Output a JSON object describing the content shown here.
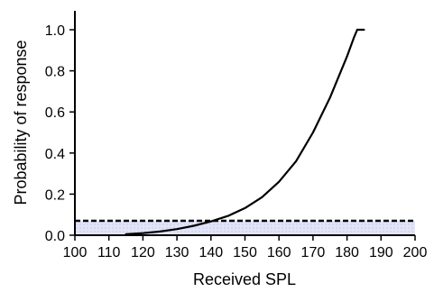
{
  "chart_data": {
    "type": "line",
    "title": "",
    "xlabel": "Received SPL",
    "ylabel": "Probability of response",
    "xlim": [
      100,
      200
    ],
    "ylim": [
      0,
      1.1
    ],
    "x_ticks": [
      "100",
      "110",
      "120",
      "130",
      "140",
      "150",
      "160",
      "170",
      "180",
      "190",
      "200"
    ],
    "y_ticks": [
      "0.0",
      "0.2",
      "0.4",
      "0.6",
      "0.8",
      "1.0"
    ],
    "grid": false,
    "legend": "none",
    "series": [
      {
        "kind": "curve",
        "color": "#000000",
        "x": [
          115,
          120,
          125,
          130,
          135,
          140,
          145,
          150,
          155,
          160,
          165,
          170,
          175,
          180,
          182,
          183,
          184,
          185
        ],
        "y": [
          0.005,
          0.01,
          0.018,
          0.03,
          0.046,
          0.067,
          0.094,
          0.132,
          0.185,
          0.26,
          0.36,
          0.5,
          0.67,
          0.87,
          0.96,
          1.0,
          1.0,
          1.0
        ]
      },
      {
        "kind": "threshold",
        "style": "dashed",
        "color": "#000000",
        "y": 0.07
      }
    ],
    "shaded_band": {
      "y": [
        0,
        0.07
      ],
      "color": "#dde0f6"
    }
  }
}
